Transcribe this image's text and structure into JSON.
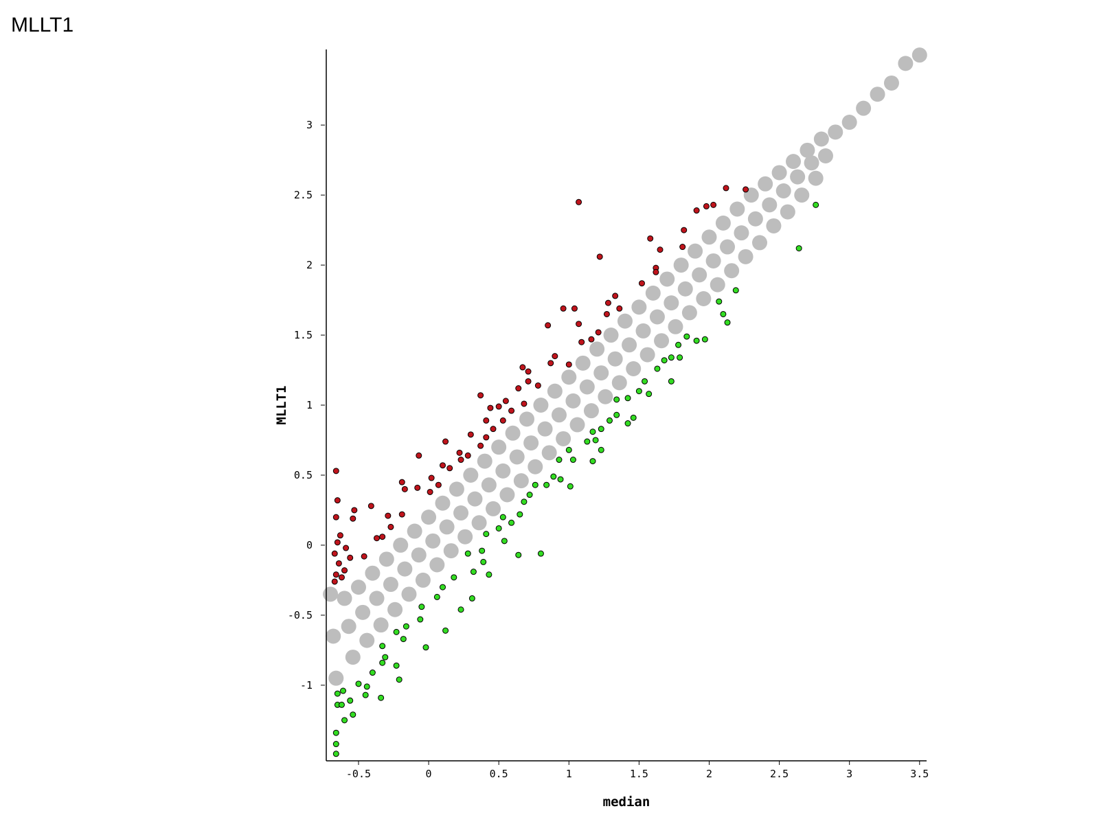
{
  "chart_data": {
    "type": "scatter",
    "title": "MLLT1",
    "x_label": "median",
    "y_label": "MLLT1",
    "xlim": [
      -0.73,
      3.55
    ],
    "ylim": [
      -1.54,
      3.54
    ],
    "xticks": [
      -0.5,
      0,
      0.5,
      1,
      1.5,
      2,
      2.5,
      3,
      3.5
    ],
    "yticks": [
      -1,
      -0.5,
      0,
      0.5,
      1,
      1.5,
      2,
      2.5,
      3
    ],
    "series": [
      {
        "color": "#bdbdbd",
        "x": [
          -0.7,
          -0.68,
          -0.66,
          -0.6,
          -0.57,
          -0.54,
          -0.5,
          -0.47,
          -0.44,
          -0.4,
          -0.37,
          -0.34,
          -0.3,
          -0.27,
          -0.24,
          -0.2,
          -0.17,
          -0.14,
          -0.1,
          -0.07,
          -0.04,
          0.0,
          0.03,
          0.06,
          0.1,
          0.13,
          0.16,
          0.2,
          0.23,
          0.26,
          0.3,
          0.33,
          0.36,
          0.4,
          0.43,
          0.46,
          0.5,
          0.53,
          0.56,
          0.6,
          0.63,
          0.66,
          0.7,
          0.73,
          0.76,
          0.8,
          0.83,
          0.86,
          0.9,
          0.93,
          0.96,
          1.0,
          1.03,
          1.06,
          1.1,
          1.13,
          1.16,
          1.2,
          1.23,
          1.26,
          1.3,
          1.33,
          1.36,
          1.4,
          1.43,
          1.46,
          1.5,
          1.53,
          1.56,
          1.6,
          1.63,
          1.66,
          1.7,
          1.73,
          1.76,
          1.8,
          1.83,
          1.86,
          1.9,
          1.93,
          1.96,
          2.0,
          2.03,
          2.06,
          2.1,
          2.13,
          2.16,
          2.2,
          2.23,
          2.26,
          2.3,
          2.33,
          2.36,
          2.4,
          2.43,
          2.46,
          2.5,
          2.53,
          2.56,
          2.6,
          2.63,
          2.66,
          2.7,
          2.73,
          2.76,
          2.8,
          2.83,
          2.9,
          3.0,
          3.1,
          3.2,
          3.3,
          3.4,
          3.5
        ],
        "values": [
          -0.35,
          -0.65,
          -0.95,
          -0.38,
          -0.58,
          -0.8,
          -0.3,
          -0.48,
          -0.68,
          -0.2,
          -0.38,
          -0.57,
          -0.1,
          -0.28,
          -0.46,
          0.0,
          -0.17,
          -0.35,
          0.1,
          -0.07,
          -0.25,
          0.2,
          0.03,
          -0.14,
          0.3,
          0.13,
          -0.04,
          0.4,
          0.23,
          0.06,
          0.5,
          0.33,
          0.16,
          0.6,
          0.43,
          0.26,
          0.7,
          0.53,
          0.36,
          0.8,
          0.63,
          0.46,
          0.9,
          0.73,
          0.56,
          1.0,
          0.83,
          0.66,
          1.1,
          0.93,
          0.76,
          1.2,
          1.03,
          0.86,
          1.3,
          1.13,
          0.96,
          1.4,
          1.23,
          1.06,
          1.5,
          1.33,
          1.16,
          1.6,
          1.43,
          1.26,
          1.7,
          1.53,
          1.36,
          1.8,
          1.63,
          1.46,
          1.9,
          1.73,
          1.56,
          2.0,
          1.83,
          1.66,
          2.1,
          1.93,
          1.76,
          2.2,
          2.03,
          1.86,
          2.3,
          2.13,
          1.96,
          2.4,
          2.23,
          2.06,
          2.5,
          2.33,
          2.16,
          2.58,
          2.43,
          2.28,
          2.66,
          2.53,
          2.38,
          2.74,
          2.63,
          2.5,
          2.82,
          2.73,
          2.62,
          2.9,
          2.78,
          2.95,
          3.02,
          3.12,
          3.22,
          3.3,
          3.44,
          3.5
        ]
      },
      {
        "color": "#c0141c",
        "edgecolor": "#000000",
        "x": [
          1.07,
          2.12,
          2.26,
          2.03,
          1.98,
          1.91,
          1.82,
          1.58,
          1.65,
          1.81,
          1.22,
          1.62,
          1.62,
          1.52,
          1.33,
          1.28,
          1.36,
          1.27,
          0.96,
          1.04,
          0.85,
          1.07,
          1.21,
          1.16,
          1.09,
          0.9,
          1.0,
          0.87,
          0.67,
          0.71,
          0.71,
          0.78,
          0.64,
          0.37,
          0.55,
          0.68,
          0.44,
          0.5,
          0.59,
          0.41,
          0.53,
          0.46,
          0.3,
          0.12,
          0.41,
          0.37,
          0.22,
          0.28,
          -0.07,
          0.1,
          0.15,
          0.23,
          0.02,
          0.07,
          -0.19,
          -0.08,
          -0.17,
          0.01,
          -0.66,
          -0.65,
          -0.41,
          -0.53,
          -0.19,
          -0.29,
          -0.27,
          -0.54,
          -0.33,
          -0.37,
          -0.66,
          -0.63,
          -0.59,
          -0.56,
          -0.46,
          -0.67,
          -0.64,
          -0.66,
          -0.62,
          -0.67,
          -0.6,
          -0.65
        ],
        "values": [
          2.45,
          2.55,
          2.54,
          2.43,
          2.42,
          2.39,
          2.25,
          2.19,
          2.11,
          2.13,
          2.06,
          1.98,
          1.95,
          1.87,
          1.78,
          1.73,
          1.69,
          1.65,
          1.69,
          1.69,
          1.57,
          1.58,
          1.52,
          1.47,
          1.45,
          1.35,
          1.29,
          1.3,
          1.27,
          1.24,
          1.17,
          1.14,
          1.12,
          1.07,
          1.03,
          1.01,
          0.98,
          0.99,
          0.96,
          0.89,
          0.89,
          0.83,
          0.79,
          0.74,
          0.77,
          0.71,
          0.66,
          0.64,
          0.64,
          0.57,
          0.55,
          0.61,
          0.48,
          0.43,
          0.45,
          0.41,
          0.4,
          0.38,
          0.53,
          0.32,
          0.28,
          0.25,
          0.22,
          0.21,
          0.13,
          0.19,
          0.06,
          0.05,
          0.2,
          0.07,
          -0.02,
          -0.09,
          -0.08,
          -0.06,
          -0.13,
          -0.21,
          -0.23,
          -0.26,
          -0.18,
          0.02
        ]
      },
      {
        "color": "#33dd22",
        "edgecolor": "#000000",
        "x": [
          2.76,
          2.64,
          2.19,
          2.07,
          2.1,
          2.13,
          1.97,
          1.91,
          1.84,
          1.78,
          1.73,
          1.79,
          1.68,
          1.73,
          1.63,
          1.54,
          1.5,
          1.57,
          1.42,
          1.34,
          1.34,
          1.46,
          1.42,
          1.29,
          1.23,
          1.17,
          1.13,
          1.19,
          1.23,
          1.17,
          1.0,
          0.93,
          1.03,
          0.89,
          0.94,
          1.01,
          0.84,
          0.76,
          0.72,
          0.68,
          0.65,
          0.53,
          0.59,
          0.5,
          0.41,
          0.54,
          0.64,
          0.8,
          0.38,
          0.28,
          0.39,
          0.43,
          0.32,
          0.18,
          0.1,
          0.31,
          0.23,
          0.06,
          -0.05,
          -0.06,
          -0.16,
          0.12,
          -0.02,
          -0.18,
          -0.23,
          -0.33,
          -0.31,
          -0.33,
          -0.23,
          -0.21,
          -0.4,
          -0.5,
          -0.44,
          -0.34,
          -0.61,
          -0.56,
          -0.54,
          -0.6,
          -0.65,
          -0.66,
          -0.66,
          -0.66,
          -0.62,
          -0.65,
          -0.45
        ],
        "values": [
          2.43,
          2.12,
          1.82,
          1.74,
          1.65,
          1.59,
          1.47,
          1.46,
          1.49,
          1.43,
          1.34,
          1.34,
          1.32,
          1.17,
          1.26,
          1.17,
          1.1,
          1.08,
          1.05,
          1.04,
          0.93,
          0.91,
          0.87,
          0.89,
          0.83,
          0.81,
          0.74,
          0.75,
          0.68,
          0.6,
          0.68,
          0.61,
          0.61,
          0.49,
          0.47,
          0.42,
          0.43,
          0.43,
          0.36,
          0.31,
          0.22,
          0.2,
          0.16,
          0.12,
          0.08,
          0.03,
          -0.07,
          -0.06,
          -0.04,
          -0.06,
          -0.12,
          -0.21,
          -0.19,
          -0.23,
          -0.3,
          -0.38,
          -0.46,
          -0.37,
          -0.44,
          -0.53,
          -0.58,
          -0.61,
          -0.73,
          -0.67,
          -0.62,
          -0.72,
          -0.8,
          -0.84,
          -0.86,
          -0.96,
          -0.91,
          -0.99,
          -1.01,
          -1.09,
          -1.04,
          -1.11,
          -1.21,
          -1.25,
          -1.14,
          -1.34,
          -1.42,
          -1.49,
          -1.14,
          -1.06,
          -1.07
        ]
      }
    ]
  }
}
